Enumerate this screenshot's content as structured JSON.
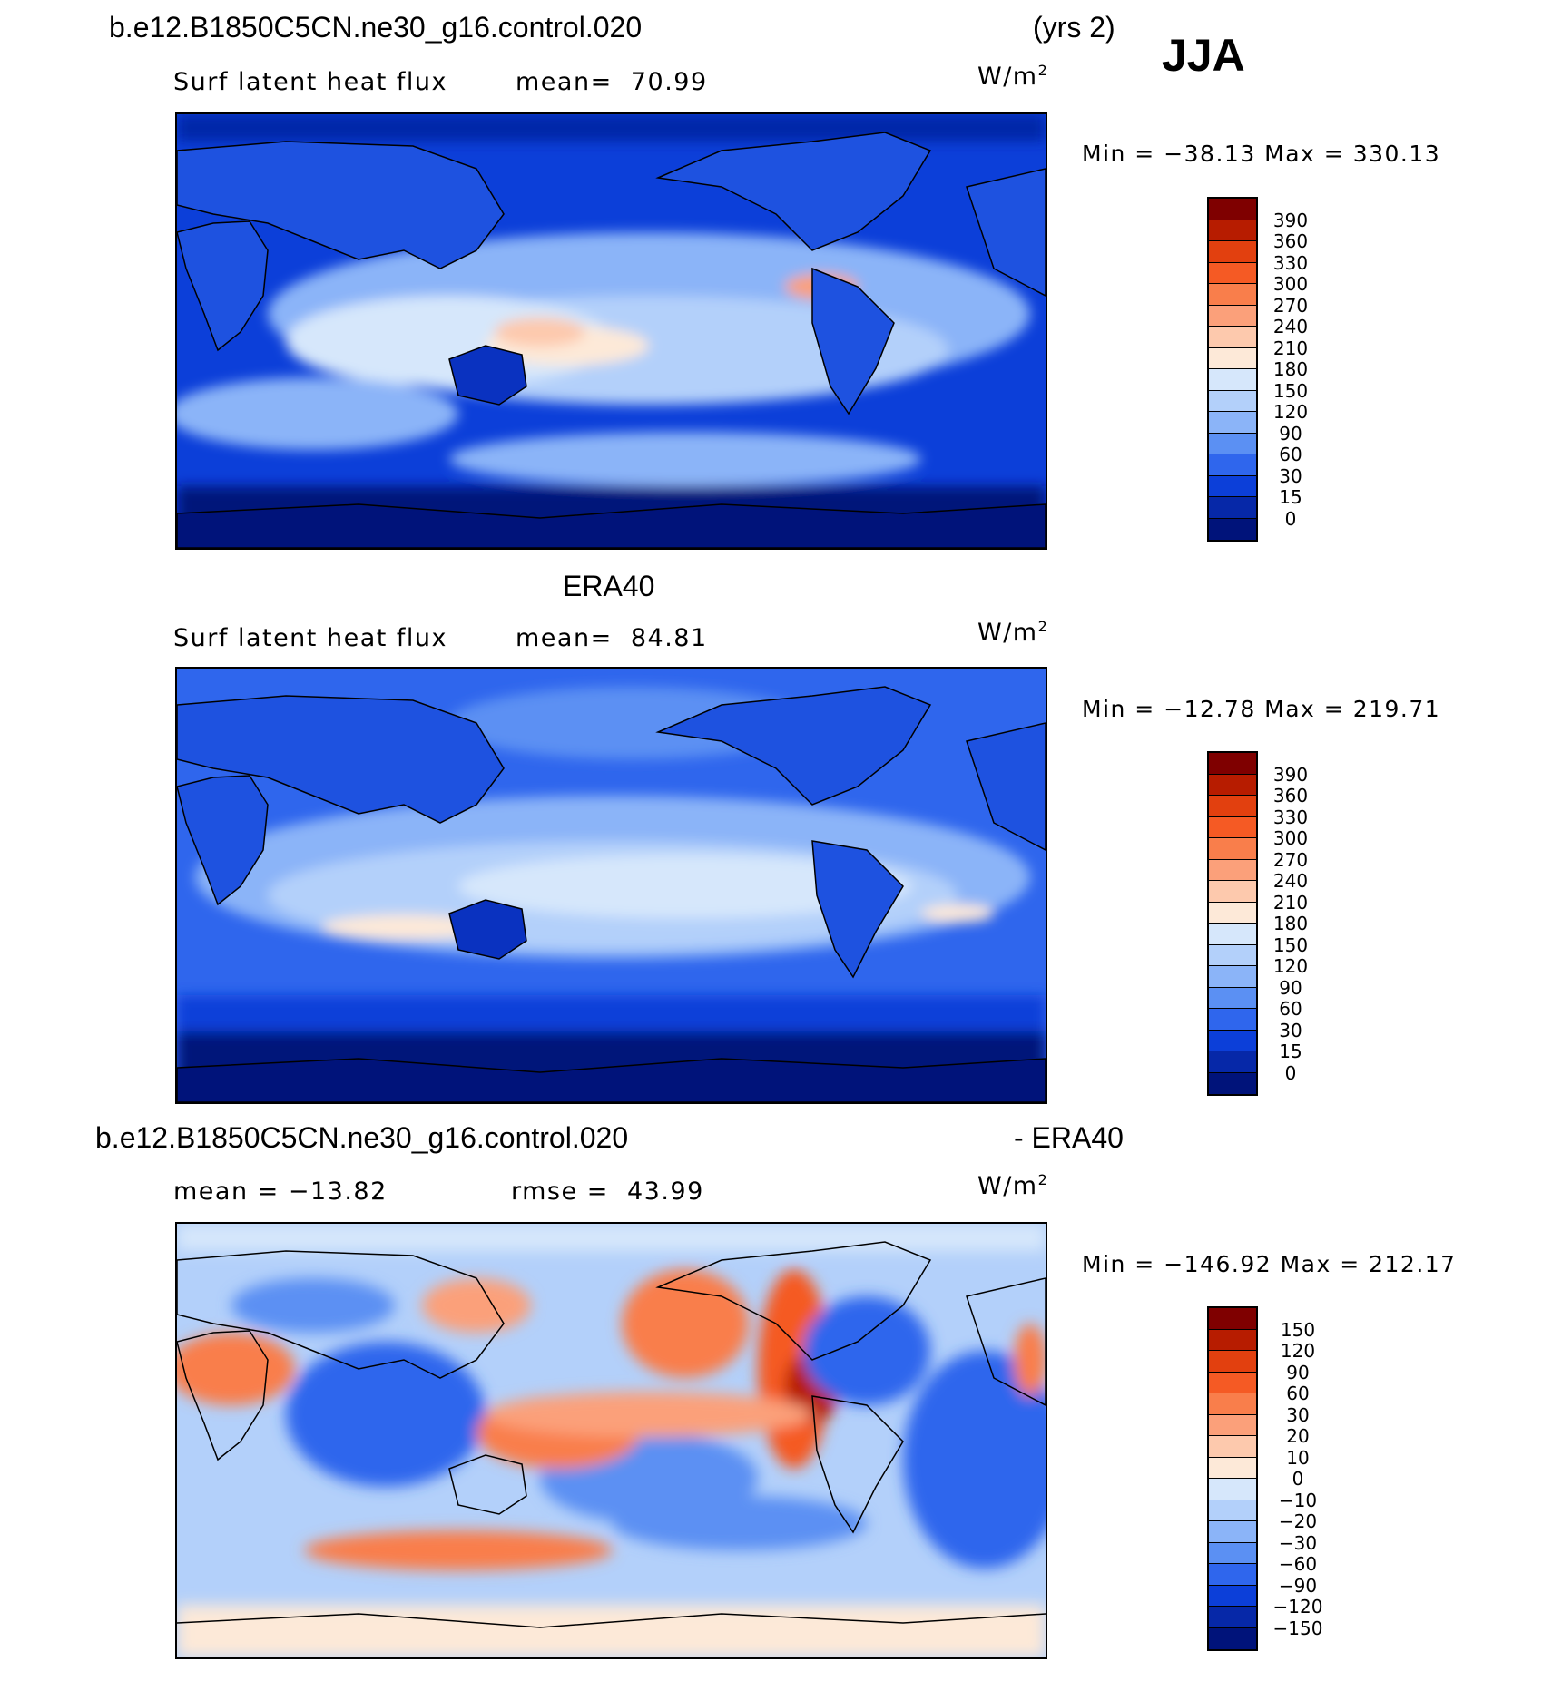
{
  "header": {
    "case_name": "b.e12.B1850C5CN.ne30_g16.control.020",
    "years": "(yrs 2)",
    "season": "JJA"
  },
  "panels": [
    {
      "id": "model",
      "title": "",
      "left_label": "Surf latent heat flux",
      "center_label": "mean=  70.99",
      "units_base": "W/m",
      "units_exp": "2",
      "minmax": "Min = −38.13 Max = 330.13"
    },
    {
      "id": "obs",
      "title": "ERA40",
      "left_label": "Surf latent heat flux",
      "center_label": "mean=  84.81",
      "units_base": "W/m",
      "units_exp": "2",
      "minmax": "Min = −12.78 Max = 219.71"
    },
    {
      "id": "diff",
      "title_left": "b.e12.B1850C5CN.ne30_g16.control.020",
      "title_right": "- ERA40",
      "left_label": "mean = −13.82",
      "center_label": "rmse =  43.99",
      "units_base": "W/m",
      "units_exp": "2",
      "minmax": "Min = −146.92 Max = 212.17"
    }
  ],
  "colorbars": {
    "abs": {
      "labels": [
        "390",
        "360",
        "330",
        "300",
        "270",
        "240",
        "210",
        "180",
        "150",
        "120",
        "90",
        "60",
        "30",
        "15",
        "0"
      ],
      "colors": [
        "#7f0000",
        "#b71c00",
        "#e2400f",
        "#f55a24",
        "#f97e4b",
        "#fba07a",
        "#fdc9ad",
        "#fde9d8",
        "#d6e7fb",
        "#b3d0fa",
        "#8bb4f8",
        "#5b90f3",
        "#2f66ed",
        "#0c3fd9",
        "#0628a8",
        "#00137a"
      ]
    },
    "diff": {
      "labels": [
        "150",
        "120",
        "90",
        "60",
        "30",
        "20",
        "10",
        "0",
        "−10",
        "−20",
        "−30",
        "−60",
        "−90",
        "−120",
        "−150"
      ],
      "colors": [
        "#7f0000",
        "#b71c00",
        "#e2400f",
        "#f55a24",
        "#f97e4b",
        "#fba07a",
        "#fdc9ad",
        "#fde9d8",
        "#d6e7fb",
        "#b3d0fa",
        "#8bb4f8",
        "#5b90f3",
        "#2f66ed",
        "#0c3fd9",
        "#0628a8",
        "#00137a"
      ]
    }
  }
}
